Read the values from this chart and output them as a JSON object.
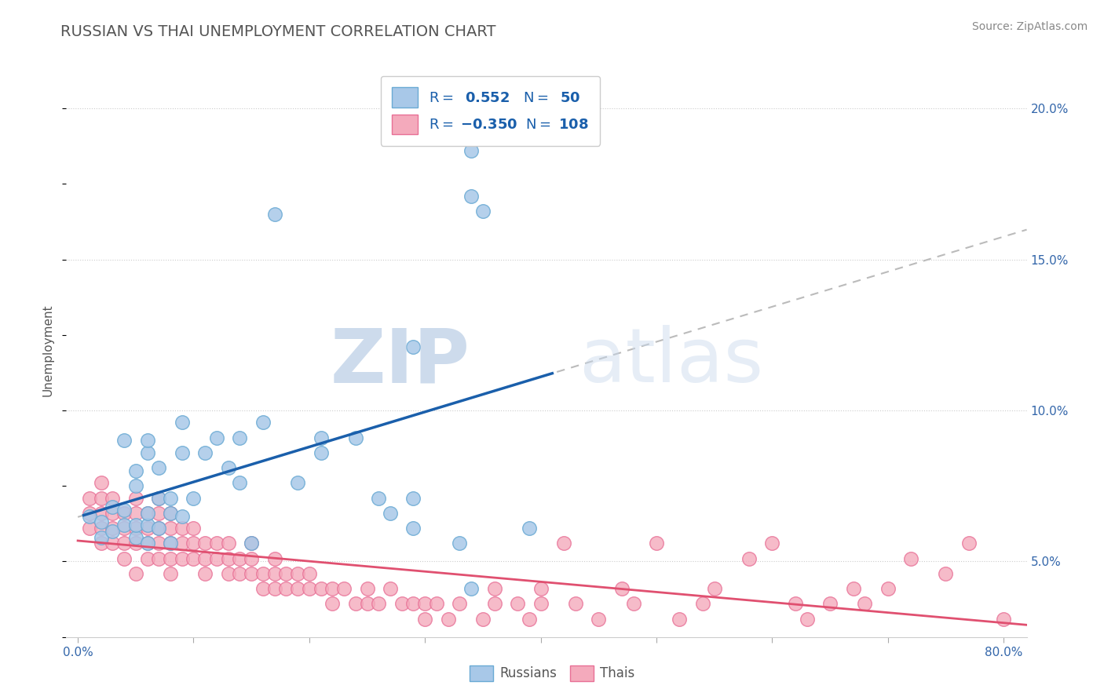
{
  "title": "RUSSIAN VS THAI UNEMPLOYMENT CORRELATION CHART",
  "source": "Source: ZipAtlas.com",
  "ylabel": "Unemployment",
  "xlim": [
    -0.01,
    0.82
  ],
  "ylim": [
    0.025,
    0.215
  ],
  "xtick_positions": [
    0.0,
    0.1,
    0.2,
    0.3,
    0.4,
    0.5,
    0.6,
    0.7,
    0.8
  ],
  "xticklabels_ends": [
    "0.0%",
    "80.0%"
  ],
  "yticks_right": [
    0.05,
    0.1,
    0.15,
    0.2
  ],
  "yticklabels_right": [
    "5.0%",
    "10.0%",
    "15.0%",
    "20.0%"
  ],
  "russian_color": "#A8C8E8",
  "thai_color": "#F4AABC",
  "russian_edge": "#6AAAD4",
  "thai_edge": "#E87096",
  "regression_blue": "#1A5FAB",
  "regression_pink": "#E05070",
  "regression_dashed": "#BBBBBB",
  "background_color": "#FFFFFF",
  "grid_color": "#CCCCCC",
  "title_color": "#555555",
  "source_color": "#888888",
  "legend_text_color": "#1A5FAB",
  "legend_label_color": "#333333",
  "russians_data": [
    [
      0.01,
      0.065
    ],
    [
      0.02,
      0.063
    ],
    [
      0.02,
      0.058
    ],
    [
      0.03,
      0.068
    ],
    [
      0.03,
      0.06
    ],
    [
      0.04,
      0.062
    ],
    [
      0.04,
      0.067
    ],
    [
      0.04,
      0.09
    ],
    [
      0.05,
      0.058
    ],
    [
      0.05,
      0.062
    ],
    [
      0.05,
      0.075
    ],
    [
      0.05,
      0.08
    ],
    [
      0.06,
      0.056
    ],
    [
      0.06,
      0.062
    ],
    [
      0.06,
      0.066
    ],
    [
      0.06,
      0.086
    ],
    [
      0.06,
      0.09
    ],
    [
      0.07,
      0.061
    ],
    [
      0.07,
      0.071
    ],
    [
      0.07,
      0.081
    ],
    [
      0.08,
      0.056
    ],
    [
      0.08,
      0.066
    ],
    [
      0.08,
      0.071
    ],
    [
      0.09,
      0.065
    ],
    [
      0.09,
      0.086
    ],
    [
      0.09,
      0.096
    ],
    [
      0.1,
      0.071
    ],
    [
      0.11,
      0.086
    ],
    [
      0.12,
      0.091
    ],
    [
      0.13,
      0.081
    ],
    [
      0.14,
      0.076
    ],
    [
      0.14,
      0.091
    ],
    [
      0.15,
      0.056
    ],
    [
      0.16,
      0.096
    ],
    [
      0.17,
      0.165
    ],
    [
      0.19,
      0.076
    ],
    [
      0.21,
      0.086
    ],
    [
      0.21,
      0.091
    ],
    [
      0.24,
      0.091
    ],
    [
      0.26,
      0.071
    ],
    [
      0.27,
      0.066
    ],
    [
      0.29,
      0.061
    ],
    [
      0.29,
      0.071
    ],
    [
      0.29,
      0.121
    ],
    [
      0.33,
      0.056
    ],
    [
      0.34,
      0.041
    ],
    [
      0.34,
      0.186
    ],
    [
      0.34,
      0.171
    ],
    [
      0.35,
      0.166
    ],
    [
      0.39,
      0.061
    ]
  ],
  "thais_data": [
    [
      0.01,
      0.071
    ],
    [
      0.01,
      0.061
    ],
    [
      0.01,
      0.066
    ],
    [
      0.02,
      0.066
    ],
    [
      0.02,
      0.056
    ],
    [
      0.02,
      0.061
    ],
    [
      0.02,
      0.071
    ],
    [
      0.02,
      0.076
    ],
    [
      0.03,
      0.056
    ],
    [
      0.03,
      0.061
    ],
    [
      0.03,
      0.066
    ],
    [
      0.03,
      0.071
    ],
    [
      0.04,
      0.051
    ],
    [
      0.04,
      0.056
    ],
    [
      0.04,
      0.061
    ],
    [
      0.04,
      0.066
    ],
    [
      0.05,
      0.046
    ],
    [
      0.05,
      0.056
    ],
    [
      0.05,
      0.061
    ],
    [
      0.05,
      0.066
    ],
    [
      0.05,
      0.071
    ],
    [
      0.06,
      0.051
    ],
    [
      0.06,
      0.056
    ],
    [
      0.06,
      0.061
    ],
    [
      0.06,
      0.066
    ],
    [
      0.07,
      0.051
    ],
    [
      0.07,
      0.056
    ],
    [
      0.07,
      0.061
    ],
    [
      0.07,
      0.066
    ],
    [
      0.07,
      0.071
    ],
    [
      0.08,
      0.046
    ],
    [
      0.08,
      0.051
    ],
    [
      0.08,
      0.056
    ],
    [
      0.08,
      0.061
    ],
    [
      0.08,
      0.066
    ],
    [
      0.09,
      0.051
    ],
    [
      0.09,
      0.056
    ],
    [
      0.09,
      0.061
    ],
    [
      0.1,
      0.051
    ],
    [
      0.1,
      0.056
    ],
    [
      0.1,
      0.061
    ],
    [
      0.11,
      0.046
    ],
    [
      0.11,
      0.051
    ],
    [
      0.11,
      0.056
    ],
    [
      0.12,
      0.051
    ],
    [
      0.12,
      0.056
    ],
    [
      0.13,
      0.046
    ],
    [
      0.13,
      0.051
    ],
    [
      0.13,
      0.056
    ],
    [
      0.14,
      0.046
    ],
    [
      0.14,
      0.051
    ],
    [
      0.15,
      0.046
    ],
    [
      0.15,
      0.051
    ],
    [
      0.15,
      0.056
    ],
    [
      0.16,
      0.041
    ],
    [
      0.16,
      0.046
    ],
    [
      0.17,
      0.041
    ],
    [
      0.17,
      0.046
    ],
    [
      0.17,
      0.051
    ],
    [
      0.18,
      0.041
    ],
    [
      0.18,
      0.046
    ],
    [
      0.19,
      0.041
    ],
    [
      0.19,
      0.046
    ],
    [
      0.2,
      0.041
    ],
    [
      0.2,
      0.046
    ],
    [
      0.21,
      0.041
    ],
    [
      0.22,
      0.036
    ],
    [
      0.22,
      0.041
    ],
    [
      0.23,
      0.041
    ],
    [
      0.24,
      0.036
    ],
    [
      0.25,
      0.036
    ],
    [
      0.25,
      0.041
    ],
    [
      0.26,
      0.036
    ],
    [
      0.27,
      0.041
    ],
    [
      0.28,
      0.036
    ],
    [
      0.29,
      0.036
    ],
    [
      0.3,
      0.031
    ],
    [
      0.3,
      0.036
    ],
    [
      0.31,
      0.036
    ],
    [
      0.32,
      0.031
    ],
    [
      0.33,
      0.036
    ],
    [
      0.35,
      0.031
    ],
    [
      0.36,
      0.036
    ],
    [
      0.36,
      0.041
    ],
    [
      0.38,
      0.036
    ],
    [
      0.39,
      0.031
    ],
    [
      0.4,
      0.036
    ],
    [
      0.4,
      0.041
    ],
    [
      0.42,
      0.056
    ],
    [
      0.43,
      0.036
    ],
    [
      0.45,
      0.031
    ],
    [
      0.47,
      0.041
    ],
    [
      0.48,
      0.036
    ],
    [
      0.5,
      0.056
    ],
    [
      0.52,
      0.031
    ],
    [
      0.54,
      0.036
    ],
    [
      0.55,
      0.041
    ],
    [
      0.58,
      0.051
    ],
    [
      0.6,
      0.056
    ],
    [
      0.62,
      0.036
    ],
    [
      0.63,
      0.031
    ],
    [
      0.65,
      0.036
    ],
    [
      0.67,
      0.041
    ],
    [
      0.68,
      0.036
    ],
    [
      0.7,
      0.041
    ],
    [
      0.72,
      0.051
    ],
    [
      0.75,
      0.046
    ],
    [
      0.77,
      0.056
    ],
    [
      0.8,
      0.031
    ]
  ]
}
